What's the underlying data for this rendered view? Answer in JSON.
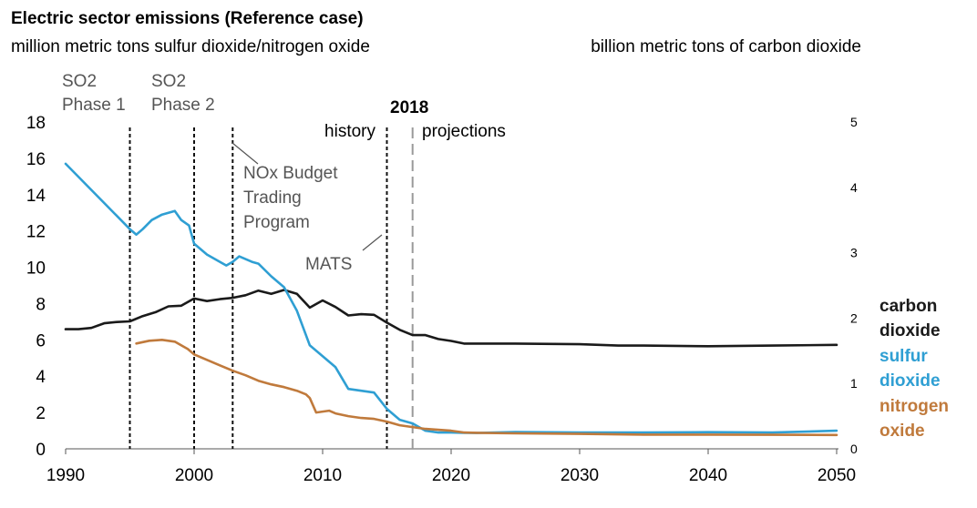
{
  "title": "Electric sector emissions (Reference case)",
  "left_unit": "million metric tons sulfur dioxide/nitrogen oxide",
  "right_unit": "billion metric tons of carbon dioxide",
  "annotations": {
    "so2_phase1": [
      "SO2",
      "Phase 1"
    ],
    "so2_phase2": [
      "SO2",
      "Phase 2"
    ],
    "nox_budget": [
      "NOx Budget",
      "Trading",
      "Program"
    ],
    "mats": "MATS",
    "history": "history",
    "year_2018": "2018",
    "projections": "projections"
  },
  "legend": [
    {
      "lines": [
        "carbon",
        "dioxide"
      ],
      "color": "#1a1a1a"
    },
    {
      "lines": [
        "sulfur",
        "dioxide"
      ],
      "color": "#2f9fd3"
    },
    {
      "lines": [
        "nitrogen",
        "oxide"
      ],
      "color": "#c07a3c"
    }
  ],
  "chart_data": {
    "type": "line",
    "title": "Electric sector emissions (Reference case)",
    "xlim": [
      1990,
      2050
    ],
    "x_ticks": [
      1990,
      2000,
      2010,
      2020,
      2030,
      2040,
      2050
    ],
    "left_axis": {
      "label": "million metric tons sulfur dioxide/nitrogen oxide",
      "ylim": [
        0,
        18
      ],
      "ticks": [
        0,
        2,
        4,
        6,
        8,
        10,
        12,
        14,
        16,
        18
      ]
    },
    "right_axis": {
      "label": "billion metric tons of carbon dioxide",
      "ylim": [
        0,
        5
      ],
      "ticks": [
        0,
        1,
        2,
        3,
        4,
        5
      ]
    },
    "vlines": [
      {
        "x": 1995,
        "style": "dotted-black"
      },
      {
        "x": 2000,
        "style": "dotted-black"
      },
      {
        "x": 2003,
        "style": "dotted-black"
      },
      {
        "x": 2015,
        "style": "dotted-black"
      },
      {
        "x": 2017,
        "style": "dashed-gray"
      }
    ],
    "series": [
      {
        "name": "carbon dioxide",
        "axis": "right",
        "color": "#1a1a1a",
        "points": [
          [
            1990,
            1.83
          ],
          [
            1991,
            1.83
          ],
          [
            1992,
            1.85
          ],
          [
            1993,
            1.92
          ],
          [
            1994,
            1.94
          ],
          [
            1995,
            1.95
          ],
          [
            1996,
            2.03
          ],
          [
            1997,
            2.09
          ],
          [
            1998,
            2.18
          ],
          [
            1999,
            2.19
          ],
          [
            2000,
            2.3
          ],
          [
            2001,
            2.26
          ],
          [
            2002,
            2.29
          ],
          [
            2003,
            2.31
          ],
          [
            2004,
            2.35
          ],
          [
            2005,
            2.42
          ],
          [
            2006,
            2.37
          ],
          [
            2007,
            2.43
          ],
          [
            2008,
            2.37
          ],
          [
            2009,
            2.16
          ],
          [
            2010,
            2.27
          ],
          [
            2011,
            2.17
          ],
          [
            2012,
            2.04
          ],
          [
            2013,
            2.06
          ],
          [
            2014,
            2.05
          ],
          [
            2015,
            1.93
          ],
          [
            2016,
            1.82
          ],
          [
            2017,
            1.74
          ],
          [
            2018,
            1.74
          ],
          [
            2019,
            1.68
          ],
          [
            2020,
            1.65
          ],
          [
            2021,
            1.61
          ],
          [
            2022,
            1.61
          ],
          [
            2025,
            1.61
          ],
          [
            2030,
            1.6
          ],
          [
            2033,
            1.58
          ],
          [
            2035,
            1.58
          ],
          [
            2040,
            1.57
          ],
          [
            2045,
            1.58
          ],
          [
            2050,
            1.59
          ]
        ]
      },
      {
        "name": "sulfur dioxide",
        "axis": "left",
        "color": "#2f9fd3",
        "points": [
          [
            1990,
            15.7
          ],
          [
            1995,
            12.1
          ],
          [
            1995.5,
            11.8
          ],
          [
            1996,
            12.1
          ],
          [
            1996.7,
            12.6
          ],
          [
            1997.5,
            12.9
          ],
          [
            1998.5,
            13.1
          ],
          [
            1999,
            12.6
          ],
          [
            1999.6,
            12.3
          ],
          [
            2000,
            11.3
          ],
          [
            2001,
            10.7
          ],
          [
            2002,
            10.3
          ],
          [
            2002.5,
            10.1
          ],
          [
            2003,
            10.3
          ],
          [
            2003.5,
            10.6
          ],
          [
            2004.5,
            10.3
          ],
          [
            2005,
            10.2
          ],
          [
            2006,
            9.5
          ],
          [
            2007,
            8.9
          ],
          [
            2008,
            7.6
          ],
          [
            2009,
            5.7
          ],
          [
            2010,
            5.1
          ],
          [
            2011,
            4.5
          ],
          [
            2012,
            3.3
          ],
          [
            2013,
            3.2
          ],
          [
            2014,
            3.1
          ],
          [
            2015,
            2.2
          ],
          [
            2016,
            1.6
          ],
          [
            2017,
            1.4
          ],
          [
            2018,
            1.0
          ],
          [
            2019,
            0.9
          ],
          [
            2020,
            0.9
          ],
          [
            2021,
            0.88
          ],
          [
            2022,
            0.87
          ],
          [
            2025,
            0.93
          ],
          [
            2030,
            0.9
          ],
          [
            2035,
            0.9
          ],
          [
            2040,
            0.92
          ],
          [
            2045,
            0.9
          ],
          [
            2050,
            1.0
          ]
        ]
      },
      {
        "name": "nitrogen oxide",
        "axis": "left",
        "color": "#c07a3c",
        "points": [
          [
            1995.5,
            5.8
          ],
          [
            1996.5,
            5.95
          ],
          [
            1997.5,
            6.0
          ],
          [
            1998.5,
            5.9
          ],
          [
            1999.5,
            5.5
          ],
          [
            2000,
            5.2
          ],
          [
            2001,
            4.9
          ],
          [
            2002,
            4.6
          ],
          [
            2003,
            4.3
          ],
          [
            2004,
            4.05
          ],
          [
            2005,
            3.75
          ],
          [
            2006,
            3.55
          ],
          [
            2007,
            3.4
          ],
          [
            2008,
            3.2
          ],
          [
            2008.7,
            3.0
          ],
          [
            2009,
            2.8
          ],
          [
            2009.5,
            2.0
          ],
          [
            2010.5,
            2.1
          ],
          [
            2011,
            1.95
          ],
          [
            2012,
            1.8
          ],
          [
            2013,
            1.7
          ],
          [
            2014,
            1.65
          ],
          [
            2015,
            1.5
          ],
          [
            2016,
            1.3
          ],
          [
            2017,
            1.2
          ],
          [
            2018,
            1.1
          ],
          [
            2019,
            1.05
          ],
          [
            2020,
            1.0
          ],
          [
            2021,
            0.9
          ],
          [
            2022,
            0.88
          ],
          [
            2025,
            0.85
          ],
          [
            2030,
            0.82
          ],
          [
            2035,
            0.78
          ],
          [
            2040,
            0.78
          ],
          [
            2045,
            0.77
          ],
          [
            2050,
            0.76
          ]
        ]
      }
    ]
  }
}
